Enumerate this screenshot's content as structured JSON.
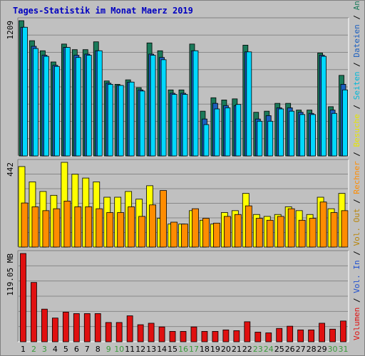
{
  "chart_data": {
    "title": "Tages-Statistik im Monat Maerz 2019",
    "days": [
      "1",
      "2",
      "3",
      "4",
      "5",
      "6",
      "7",
      "8",
      "9",
      "10",
      "11",
      "12",
      "13",
      "14",
      "15",
      "16",
      "17",
      "18",
      "19",
      "20",
      "21",
      "22",
      "23",
      "24",
      "25",
      "26",
      "27",
      "28",
      "29",
      "30",
      "31"
    ],
    "weekend_days": [
      "2",
      "3",
      "9",
      "10",
      "16",
      "17",
      "23",
      "24",
      "30",
      "31"
    ],
    "panels": [
      {
        "type": "bar",
        "max_label": "1209",
        "ylim": [
          0,
          1209
        ],
        "series": [
          {
            "name": "Anfragen",
            "color": "#1a7a5a",
            "values": [
              1209,
              1030,
              940,
              840,
              1000,
              950,
              950,
              1020,
              670,
              640,
              680,
              610,
              1010,
              940,
              590,
              590,
              1000,
              400,
              520,
              500,
              510,
              990,
              390,
              400,
              470,
              470,
              410,
              410,
              920,
              440,
              720
            ]
          },
          {
            "name": "Dateien",
            "color": "#1a5fbf",
            "values": [
              1150,
              980,
              900,
              810,
              970,
              900,
              910,
              940,
              650,
              630,
              660,
              590,
              910,
              880,
              560,
              560,
              940,
              330,
              470,
              450,
              450,
              930,
              330,
              360,
              430,
              430,
              390,
              380,
              900,
              410,
              640
            ]
          },
          {
            "name": "Seiten",
            "color": "#00d8ff",
            "values": [
              1150,
              960,
              890,
              800,
              970,
              880,
              900,
              940,
              640,
              630,
              660,
              580,
              900,
              860,
              550,
              550,
              940,
              280,
              420,
              430,
              460,
              930,
              310,
              310,
              420,
              400,
              370,
              370,
              890,
              380,
              590
            ]
          }
        ]
      },
      {
        "type": "bar",
        "max_label": "442",
        "ylim": [
          0,
          442
        ],
        "series": [
          {
            "name": "Besuche",
            "color": "#ffff00",
            "values": [
              420,
              340,
              290,
              270,
              442,
              380,
              360,
              340,
              260,
              260,
              290,
              250,
              320,
              150,
              120,
              120,
              190,
              140,
              120,
              180,
              190,
              280,
              170,
              160,
              170,
              210,
              190,
              170,
              260,
              200,
              280
            ]
          },
          {
            "name": "Rechner",
            "color": "#ff8c00",
            "values": [
              230,
              210,
              190,
              200,
              240,
              210,
              210,
              200,
              180,
              180,
              210,
              160,
              220,
              295,
              130,
              120,
              200,
              150,
              125,
              160,
              170,
              215,
              150,
              140,
              160,
              200,
              140,
              150,
              235,
              180,
              190
            ]
          }
        ]
      },
      {
        "type": "bar",
        "max_label": "119.05 MB",
        "ylim": [
          0,
          119.05
        ],
        "series": [
          {
            "name": "Volumen",
            "color": "#e01010",
            "values": [
              119.05,
              80,
              44,
              32,
              40,
              38,
              38,
              38,
              26,
              26,
              35,
              23,
              25,
              20,
              14,
              14,
              20,
              14,
              14,
              16,
              15,
              27,
              13,
              12,
              18,
              21,
              16,
              16,
              25,
              17,
              28
            ]
          }
        ]
      }
    ],
    "right_legend": [
      {
        "text": "Volumen",
        "color": "#e01010"
      },
      {
        "text": "Vol. In",
        "color": "#2050d0"
      },
      {
        "text": "Vol. Out",
        "color": "#b8860b"
      },
      {
        "text": "Rechner",
        "color": "#ff8c00"
      },
      {
        "text": "Besuche",
        "color": "#e6e600"
      },
      {
        "text": "Seiten",
        "color": "#00b8d8"
      },
      {
        "text": "Dateien",
        "color": "#1a5fbf"
      },
      {
        "text": "Anfragen",
        "color": "#1a7a5a"
      }
    ],
    "colors": {
      "background": "#c0c0c0",
      "grid": "#888888",
      "frame_light": "#ffffff",
      "frame_dark": "#808080",
      "title": "#0000c0",
      "axis_text": "#000000",
      "weekday_text": "#000000",
      "weekend_text": "#3a9a3a"
    }
  }
}
